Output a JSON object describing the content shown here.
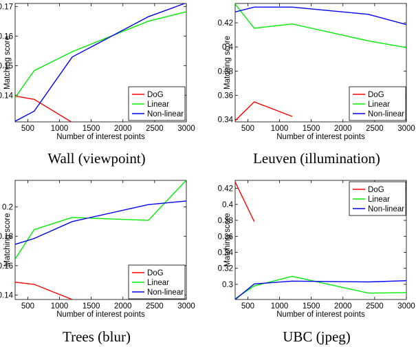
{
  "chart_data": [
    {
      "type": "line",
      "caption": "Wall (viewpoint)",
      "xlabel": "Number of interest points",
      "ylabel": "Matching score",
      "xlim": [
        300,
        3000
      ],
      "ylim": [
        0.131,
        0.171
      ],
      "xticks": [
        500,
        1000,
        1500,
        2000,
        2500,
        3000
      ],
      "yticks": [
        0.14,
        0.15,
        0.16,
        0.17
      ],
      "ytick_labels": [
        "0.14",
        "0.15",
        "0.16",
        "0.17"
      ],
      "legend_position": "bottom-right",
      "series": [
        {
          "name": "DoG",
          "color": "#ff0000",
          "x": [
            300,
            600,
            1200
          ],
          "y": [
            0.1397,
            0.1386,
            0.1308
          ]
        },
        {
          "name": "Linear",
          "color": "#00ee00",
          "x": [
            300,
            600,
            1200,
            2400,
            3000
          ],
          "y": [
            0.1392,
            0.1483,
            0.1547,
            0.165,
            0.1682
          ]
        },
        {
          "name": "Non-linear",
          "color": "#0000ee",
          "x": [
            300,
            600,
            1200,
            2400,
            3000
          ],
          "y": [
            0.1312,
            0.1346,
            0.1529,
            0.1665,
            0.1712
          ]
        }
      ]
    },
    {
      "type": "line",
      "caption": "Leuven (illumination)",
      "xlabel": "Number of interest points",
      "ylabel": "Matching score",
      "xlim": [
        300,
        3000
      ],
      "ylim": [
        0.338,
        0.436
      ],
      "xticks": [
        500,
        1000,
        1500,
        2000,
        2500,
        3000
      ],
      "yticks": [
        0.34,
        0.36,
        0.38,
        0.4,
        0.42
      ],
      "ytick_labels": [
        "0.34",
        "0.36",
        "0.38",
        "0.4",
        "0.42"
      ],
      "legend_position": "bottom-right",
      "series": [
        {
          "name": "DoG",
          "color": "#ff0000",
          "x": [
            300,
            600,
            1200
          ],
          "y": [
            0.339,
            0.3545,
            0.3425
          ]
        },
        {
          "name": "Linear",
          "color": "#00ee00",
          "x": [
            300,
            600,
            1200,
            2400,
            3000
          ],
          "y": [
            0.4355,
            0.4155,
            0.419,
            0.405,
            0.3995
          ]
        },
        {
          "name": "Non-linear",
          "color": "#0000ee",
          "x": [
            300,
            600,
            1200,
            2400,
            3000
          ],
          "y": [
            0.429,
            0.433,
            0.433,
            0.427,
            0.4185
          ]
        }
      ]
    },
    {
      "type": "line",
      "caption": "Trees (blur)",
      "xlabel": "Number of interest points",
      "ylabel": "Matching score",
      "xlim": [
        300,
        3000
      ],
      "ylim": [
        0.137,
        0.218
      ],
      "xticks": [
        500,
        1000,
        1500,
        2000,
        2500,
        3000
      ],
      "yticks": [
        0.14,
        0.16,
        0.18,
        0.2
      ],
      "ytick_labels": [
        "0.14",
        "0.16",
        "0.18",
        "0.2"
      ],
      "legend_position": "bottom-right",
      "series": [
        {
          "name": "DoG",
          "color": "#ff0000",
          "x": [
            300,
            600,
            1200
          ],
          "y": [
            0.1488,
            0.1473,
            0.137
          ]
        },
        {
          "name": "Linear",
          "color": "#00ee00",
          "x": [
            300,
            600,
            1200,
            2400,
            3000
          ],
          "y": [
            0.1645,
            0.1845,
            0.1928,
            0.1908,
            0.2182
          ]
        },
        {
          "name": "Non-linear",
          "color": "#0000ee",
          "x": [
            300,
            600,
            1200,
            2400,
            3000
          ],
          "y": [
            0.1745,
            0.1785,
            0.19,
            0.2015,
            0.204
          ]
        }
      ]
    },
    {
      "type": "line",
      "caption": "UBC (jpeg)",
      "xlabel": "Number of interest points",
      "ylabel": "Matching score",
      "xlim": [
        300,
        3000
      ],
      "ylim": [
        0.281,
        0.43
      ],
      "xticks": [
        500,
        1000,
        1500,
        2000,
        2500,
        3000
      ],
      "yticks": [
        0.3,
        0.32,
        0.34,
        0.36,
        0.38,
        0.4,
        0.42
      ],
      "ytick_labels": [
        "0.3",
        "0.32",
        "0.34",
        "0.36",
        "0.38",
        "0.4",
        "0.42"
      ],
      "legend_position": "top-right",
      "series": [
        {
          "name": "DoG",
          "color": "#ff0000",
          "x": [
            300,
            600
          ],
          "y": [
            0.428,
            0.3785
          ]
        },
        {
          "name": "Linear",
          "color": "#00ee00",
          "x": [
            300,
            600,
            1200,
            2400,
            3000
          ],
          "y": [
            0.282,
            0.298,
            0.31,
            0.289,
            0.2895
          ]
        },
        {
          "name": "Non-linear",
          "color": "#0000ee",
          "x": [
            300,
            600,
            1200,
            2400,
            3000
          ],
          "y": [
            0.281,
            0.3005,
            0.304,
            0.303,
            0.3045
          ]
        }
      ]
    }
  ]
}
